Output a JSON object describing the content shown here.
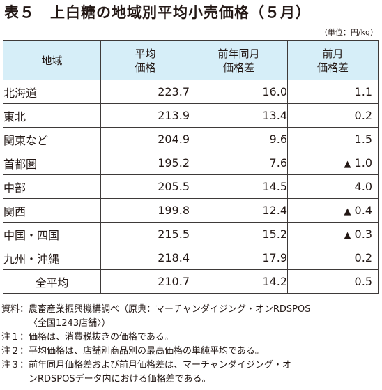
{
  "title": "表５　上白糖の地域別平均小売価格（５月）",
  "unit": "（単位：円/kg）",
  "table": {
    "headers": [
      "地域",
      "平均\n価格",
      "前年同月\n価格差",
      "前月\n価格差"
    ],
    "rows": [
      {
        "region": "北海道",
        "avg": "223.7",
        "yoy": "16.0",
        "mom": "1.1",
        "mom_down": false
      },
      {
        "region": "東北",
        "avg": "213.9",
        "yoy": "13.4",
        "mom": "0.2",
        "mom_down": false
      },
      {
        "region": "関東など",
        "avg": "204.9",
        "yoy": "9.6",
        "mom": "1.5",
        "mom_down": false
      },
      {
        "region": "首都圏",
        "avg": "195.2",
        "yoy": "7.6",
        "mom": "1.0",
        "mom_down": true
      },
      {
        "region": "中部",
        "avg": "205.5",
        "yoy": "14.5",
        "mom": "4.0",
        "mom_down": false
      },
      {
        "region": "関西",
        "avg": "199.8",
        "yoy": "12.4",
        "mom": "0.4",
        "mom_down": true
      },
      {
        "region": "中国・四国",
        "avg": "215.5",
        "yoy": "15.2",
        "mom": "0.3",
        "mom_down": true
      },
      {
        "region": "九州・沖縄",
        "avg": "218.4",
        "yoy": "17.9",
        "mom": "0.2",
        "mom_down": false
      },
      {
        "region": "全平均",
        "avg": "210.7",
        "yoy": "14.2",
        "mom": "0.5",
        "mom_down": false
      }
    ]
  },
  "decrease_marker": "▲",
  "notes": [
    {
      "label": "資料：",
      "text": "農畜産業振興機構調べ（原典：マーチャンダイジング・オンRDSPOS\n〈全国1243店舗〉）"
    },
    {
      "label": "注１：",
      "text": "価格は、消費税抜きの価格である。"
    },
    {
      "label": "注２：",
      "text": "平均価格は、店舗別商品別の最高価格の単純平均である。"
    },
    {
      "label": "注３：",
      "text": "前年同月価格差および前月価格差は、マーチャンダイジング・オ\nンRDSPOSデータ内における価格差である。"
    }
  ],
  "colors": {
    "header_bg": "#d6eef8",
    "border": "#3e3a39",
    "text": "#231815"
  }
}
